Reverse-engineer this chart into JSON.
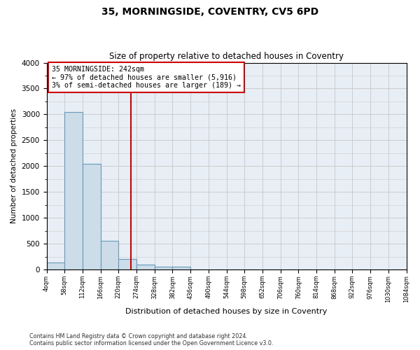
{
  "title": "35, MORNINGSIDE, COVENTRY, CV5 6PD",
  "subtitle": "Size of property relative to detached houses in Coventry",
  "xlabel": "Distribution of detached houses by size in Coventry",
  "ylabel": "Number of detached properties",
  "footer_line1": "Contains HM Land Registry data © Crown copyright and database right 2024.",
  "footer_line2": "Contains public sector information licensed under the Open Government Licence v3.0.",
  "bin_labels": [
    "4sqm",
    "58sqm",
    "112sqm",
    "166sqm",
    "220sqm",
    "274sqm",
    "328sqm",
    "382sqm",
    "436sqm",
    "490sqm",
    "544sqm",
    "598sqm",
    "652sqm",
    "706sqm",
    "760sqm",
    "814sqm",
    "868sqm",
    "922sqm",
    "976sqm",
    "1030sqm",
    "1084sqm"
  ],
  "bar_heights": [
    130,
    3050,
    2050,
    550,
    200,
    100,
    60,
    50,
    0,
    0,
    0,
    0,
    0,
    0,
    0,
    0,
    0,
    0,
    0,
    0
  ],
  "bar_color": "#ccdce8",
  "bar_edge_color": "#6699bb",
  "ylim": [
    0,
    4000
  ],
  "yticks": [
    0,
    500,
    1000,
    1500,
    2000,
    2500,
    3000,
    3500,
    4000
  ],
  "vline_x": 4.7,
  "annotation_text": "35 MORNINGSIDE: 242sqm\n← 97% of detached houses are smaller (5,916)\n3% of semi-detached houses are larger (189) →",
  "annotation_box_color": "#ffffff",
  "annotation_box_edge_color": "#cc0000",
  "vline_color": "#cc0000",
  "grid_color": "#cccccc",
  "plot_bg_color": "#e8eef5",
  "background_color": "#ffffff"
}
